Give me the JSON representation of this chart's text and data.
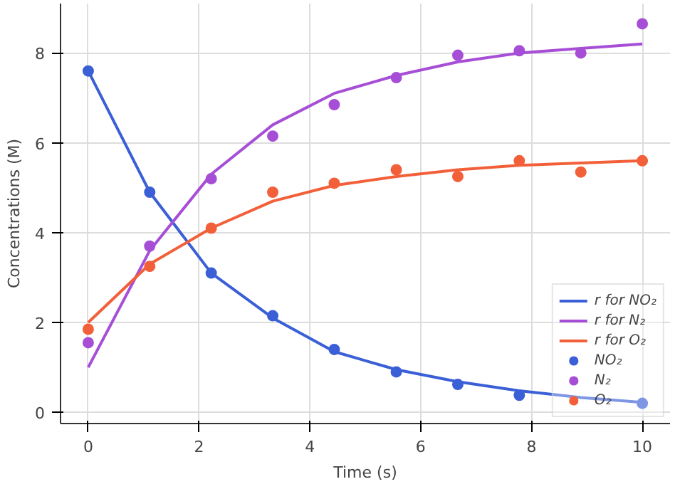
{
  "chart_data": {
    "type": "line",
    "xlabel": "Time (s)",
    "ylabel": "Concentrations (M)",
    "x": [
      0,
      1.11,
      2.22,
      3.33,
      4.44,
      5.56,
      6.67,
      7.78,
      8.89,
      10
    ],
    "xlim": [
      -0.5,
      10.5
    ],
    "xticks": [
      0,
      2,
      4,
      6,
      8,
      10
    ],
    "ylim": [
      -0.25,
      9.1
    ],
    "yticks": [
      0,
      2,
      4,
      6,
      8
    ],
    "grid": true,
    "legend": "bottom right",
    "line_style": "solid",
    "series": [
      {
        "name": "r for NO₂",
        "color": "#3a5fd6",
        "values": [
          7.6,
          4.9,
          3.1,
          2.1,
          1.35,
          0.95,
          0.68,
          0.48,
          0.33,
          0.22
        ]
      },
      {
        "name": "r for N₂",
        "color": "#a64fd6",
        "values": [
          1.0,
          3.6,
          5.3,
          6.4,
          7.1,
          7.5,
          7.8,
          8.0,
          8.1,
          8.2
        ]
      },
      {
        "name": "r for O₂",
        "color": "#f2603a",
        "values": [
          2.0,
          3.3,
          4.1,
          4.7,
          5.05,
          5.25,
          5.4,
          5.5,
          5.55,
          5.6
        ]
      },
      {
        "name": "NO₂",
        "type": "scatter",
        "marker": "circle",
        "color": "#3a5fd6",
        "values": [
          7.6,
          4.9,
          3.1,
          2.15,
          1.4,
          0.9,
          0.62,
          0.38,
          null,
          0.2
        ]
      },
      {
        "name": "N₂",
        "type": "scatter",
        "marker": "circle",
        "color": "#a64fd6",
        "values": [
          1.55,
          3.7,
          5.2,
          6.15,
          6.85,
          7.45,
          7.95,
          8.05,
          8.0,
          8.65
        ]
      },
      {
        "name": "O₂",
        "type": "scatter",
        "marker": "circle",
        "color": "#f2603a",
        "values": [
          1.85,
          3.25,
          4.1,
          4.9,
          5.1,
          5.4,
          5.25,
          5.6,
          5.35,
          5.6
        ]
      }
    ]
  }
}
